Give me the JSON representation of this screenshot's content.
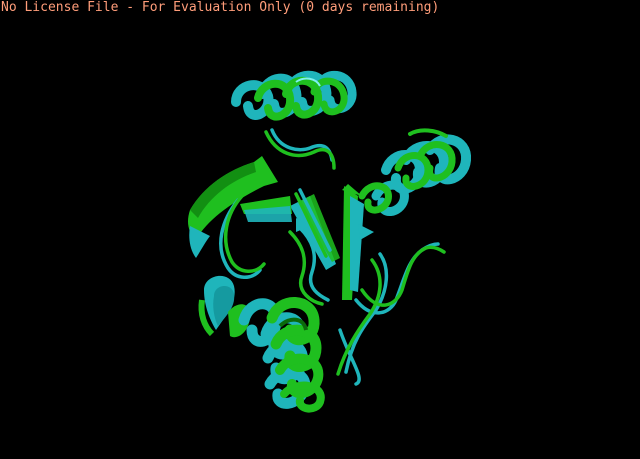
{
  "viewer": {
    "license_text": "No License File - For Evaluation Only (0 days remaining)",
    "background_color": "#000000",
    "license_text_color": "#ff9d7a"
  },
  "structure": {
    "representation": "cartoon",
    "chain_colors": {
      "chain_a": "#2ec4c8",
      "chain_b": "#22cc22"
    }
  }
}
